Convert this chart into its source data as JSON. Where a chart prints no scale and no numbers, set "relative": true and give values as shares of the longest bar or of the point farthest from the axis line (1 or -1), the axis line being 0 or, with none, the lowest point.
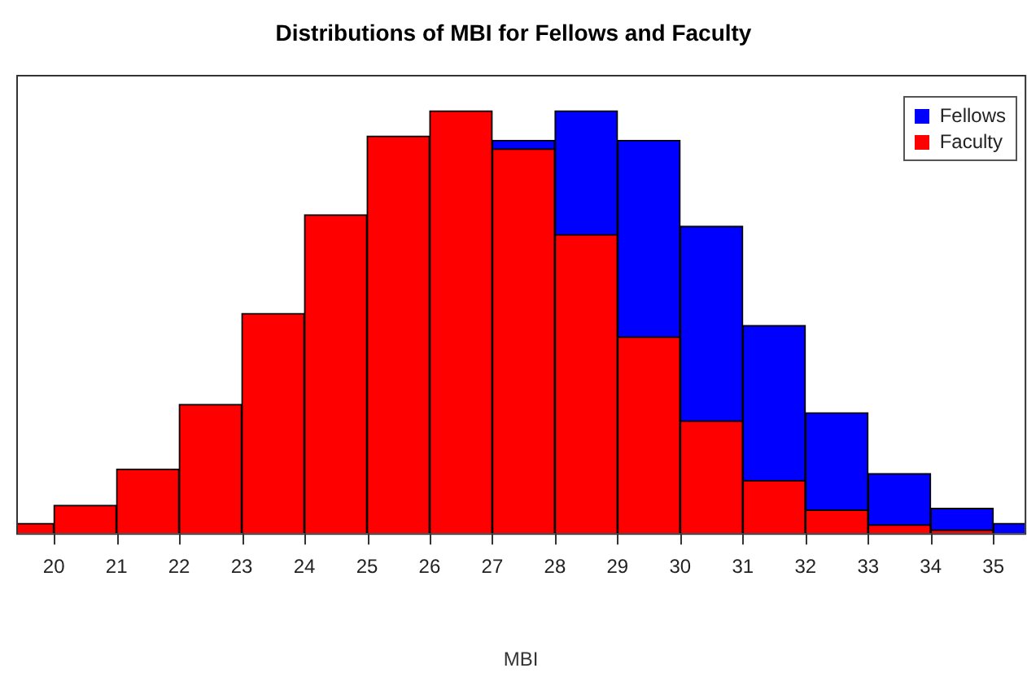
{
  "chart_data": {
    "type": "bar",
    "title": "Distributions of MBI for Fellows and Faculty",
    "xlabel": "MBI",
    "relative": true,
    "x": [
      19.5,
      20.5,
      21.5,
      22.5,
      23.5,
      24.5,
      25.5,
      26.5,
      27.5,
      28.5,
      29.5,
      30.5,
      31.5,
      32.5,
      33.5,
      34.5,
      35.5
    ],
    "series": [
      {
        "name": "Fellows",
        "color": "#0000ff",
        "values": [
          null,
          null,
          null,
          null,
          null,
          null,
          null,
          null,
          0.93,
          1.0,
          0.93,
          0.727,
          0.492,
          0.285,
          0.141,
          0.059,
          0.023
        ]
      },
      {
        "name": "Faculty",
        "color": "#ff0000",
        "values": [
          0.023,
          0.066,
          0.152,
          0.305,
          0.52,
          0.754,
          0.94,
          1.0,
          0.91,
          0.707,
          0.465,
          0.266,
          0.125,
          0.055,
          0.02,
          0.008,
          0.0
        ]
      }
    ],
    "xlim": [
      19.4,
      35.5
    ],
    "xticks": [
      20,
      21,
      22,
      23,
      24,
      25,
      26,
      27,
      28,
      29,
      30,
      31,
      32,
      33,
      34,
      35
    ],
    "grid": false,
    "legend": "top right"
  }
}
